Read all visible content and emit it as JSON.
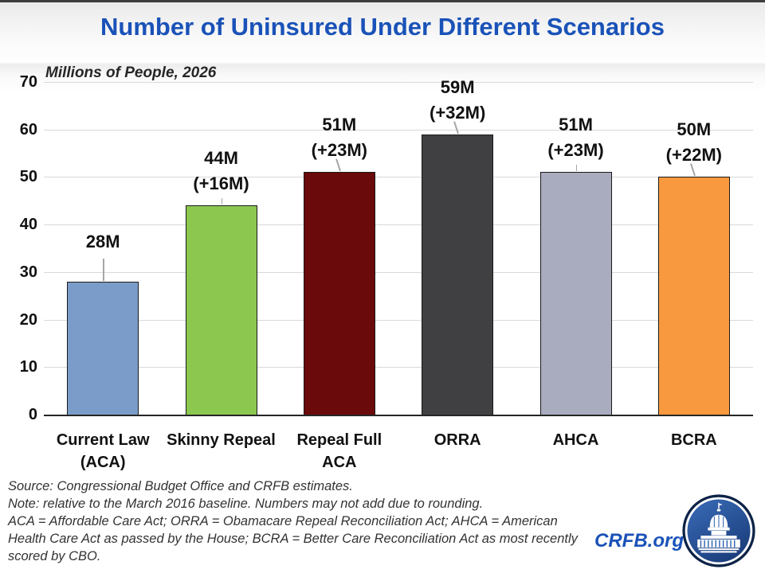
{
  "chart_data": {
    "type": "bar",
    "title": "Number of Uninsured Under Different Scenarios",
    "subtitle": "Millions of People, 2026",
    "categories": [
      "Current Law (ACA)",
      "Skinny Repeal",
      "Repeal Full ACA",
      "ORRA",
      "AHCA",
      "BCRA"
    ],
    "category_lines": [
      [
        "Current Law",
        "(ACA)"
      ],
      [
        "Skinny Repeal"
      ],
      [
        "Repeal Full",
        "ACA"
      ],
      [
        "ORRA"
      ],
      [
        "AHCA"
      ],
      [
        "BCRA"
      ]
    ],
    "values": [
      28,
      44,
      51,
      59,
      51,
      50
    ],
    "bar_labels": [
      [
        "28M"
      ],
      [
        "44M",
        "(+16M)"
      ],
      [
        "51M",
        "(+23M)"
      ],
      [
        "59M",
        "(+32M)"
      ],
      [
        "51M",
        "(+23M)"
      ],
      [
        "50M",
        "(+22M)"
      ]
    ],
    "bar_colors": [
      "#7b9cc9",
      "#8cc850",
      "#6b0a0a",
      "#404042",
      "#a9abbf",
      "#f8993f"
    ],
    "ylim": [
      0,
      70
    ],
    "yticks": [
      0,
      10,
      20,
      30,
      40,
      50,
      60,
      70
    ],
    "grid": true,
    "legend": false
  },
  "footer": {
    "lines": [
      "Source: Congressional Budget Office and CRFB estimates.",
      "Note: relative to the March 2016 baseline. Numbers may not add due to rounding.",
      "ACA = Affordable Care Act; ORRA = Obamacare Repeal Reconciliation Act; AHCA = American",
      "Health Care Act as passed by the House; BCRA = Better Care Reconciliation Act as most recently",
      "scored by CBO."
    ]
  },
  "branding": {
    "site": "CRFB.org",
    "logo_icon": "capitol-icon"
  },
  "colors": {
    "title_blue": "#1a52b8",
    "grid": "#d9d9d9",
    "axis": "#262626",
    "leader_line": "#a6a6a6",
    "footer_text": "#333333",
    "logo_navy": "#0d2347",
    "logo_blue": "#2a5fae"
  }
}
